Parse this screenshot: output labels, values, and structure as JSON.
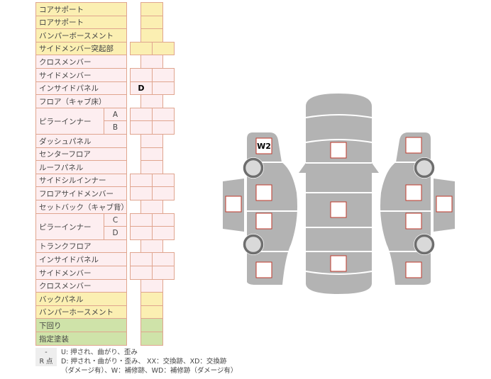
{
  "colors": {
    "front": "#fbefb2",
    "frame": "#fdeef0",
    "bottom": "#cfe3a9",
    "border": "#e0a58f",
    "car": "#b3b3b3",
    "mark_border": "#c0392b"
  },
  "rows": [
    {
      "label": "コアサポート",
      "color": "yellow",
      "cells": "single",
      "values": [
        ""
      ]
    },
    {
      "label": "ロアサポート",
      "color": "yellow",
      "cells": "single",
      "values": [
        ""
      ]
    },
    {
      "label": "バンパーボースメント",
      "color": "yellow",
      "cells": "single",
      "values": [
        ""
      ]
    },
    {
      "label": "サイドメンバー突起部",
      "color": "yellow",
      "cells": "double",
      "values": [
        "",
        ""
      ]
    },
    {
      "label": "クロスメンバー",
      "color": "pink",
      "cells": "single",
      "values": [
        ""
      ]
    },
    {
      "label": "サイドメンバー",
      "color": "pink",
      "cells": "double",
      "values": [
        "",
        ""
      ]
    },
    {
      "label": "インサイドパネル",
      "color": "pink",
      "cells": "double",
      "values": [
        "D",
        ""
      ]
    },
    {
      "label": "フロア（キャブ床）",
      "color": "pink",
      "cells": "single",
      "values": [
        ""
      ]
    },
    {
      "label": "ピラーインナー",
      "sub": "A",
      "color": "pink",
      "cells": "double",
      "values": [
        "",
        ""
      ]
    },
    {
      "label": "",
      "sub": "B",
      "color": "pink",
      "cells": "double",
      "values": [
        "",
        ""
      ]
    },
    {
      "label": "ダッシュパネル",
      "color": "pink",
      "cells": "single",
      "values": [
        ""
      ]
    },
    {
      "label": "センターフロア",
      "color": "pink",
      "cells": "single",
      "values": [
        ""
      ]
    },
    {
      "label": "ルーフパネル",
      "color": "pink",
      "cells": "single",
      "values": [
        ""
      ]
    },
    {
      "label": "サイドシルインナー",
      "color": "pink",
      "cells": "double",
      "values": [
        "",
        ""
      ]
    },
    {
      "label": "フロアサイドメンバー",
      "color": "pink",
      "cells": "double",
      "values": [
        "",
        ""
      ]
    },
    {
      "label": "セットバック（キャブ背）",
      "color": "pink",
      "cells": "single",
      "values": [
        ""
      ]
    },
    {
      "label": "ピラーインナー",
      "sub": "C",
      "color": "pink",
      "cells": "double",
      "values": [
        "",
        ""
      ]
    },
    {
      "label": "",
      "sub": "D",
      "color": "pink",
      "cells": "double",
      "values": [
        "",
        ""
      ]
    },
    {
      "label": "トランクフロア",
      "color": "pink",
      "cells": "single",
      "values": [
        ""
      ]
    },
    {
      "label": "インサイドパネル",
      "color": "pink",
      "cells": "double",
      "values": [
        "",
        ""
      ]
    },
    {
      "label": "サイドメンバー",
      "color": "pink",
      "cells": "double",
      "values": [
        "",
        ""
      ]
    },
    {
      "label": "クロスメンバー",
      "color": "pink",
      "cells": "single",
      "values": [
        ""
      ]
    },
    {
      "label": "バックパネル",
      "color": "yellow",
      "cells": "single",
      "values": [
        ""
      ]
    },
    {
      "label": "バンパーホースメント",
      "color": "yellow",
      "cells": "single",
      "values": [
        ""
      ]
    },
    {
      "label": "下回り",
      "color": "green",
      "cells": "single",
      "values": [
        ""
      ]
    },
    {
      "label": "指定塗装",
      "color": "green",
      "cells": "single",
      "values": [
        ""
      ]
    }
  ],
  "legend": [
    {
      "key": "-",
      "text": "U: 押され、曲がり、歪み"
    },
    {
      "key": "R 点",
      "text": "D: 押され・曲がり・歪み、 XX：交換跡、XD：交換跡"
    },
    {
      "key": "",
      "text": "（ダメージ有）、W：補修跡、WD：補修跡（ダメージ有）"
    }
  ],
  "car_marks": {
    "left_front_fender": "W2",
    "left_front_door": "",
    "left_rear_door": "",
    "left_rear_fender": "",
    "left_door_panel": "",
    "hood": "",
    "roof": "",
    "trunk": "",
    "right_front_fender": "",
    "right_front_door": "",
    "right_rear_door": "",
    "right_rear_fender": "",
    "right_door_panel": ""
  }
}
